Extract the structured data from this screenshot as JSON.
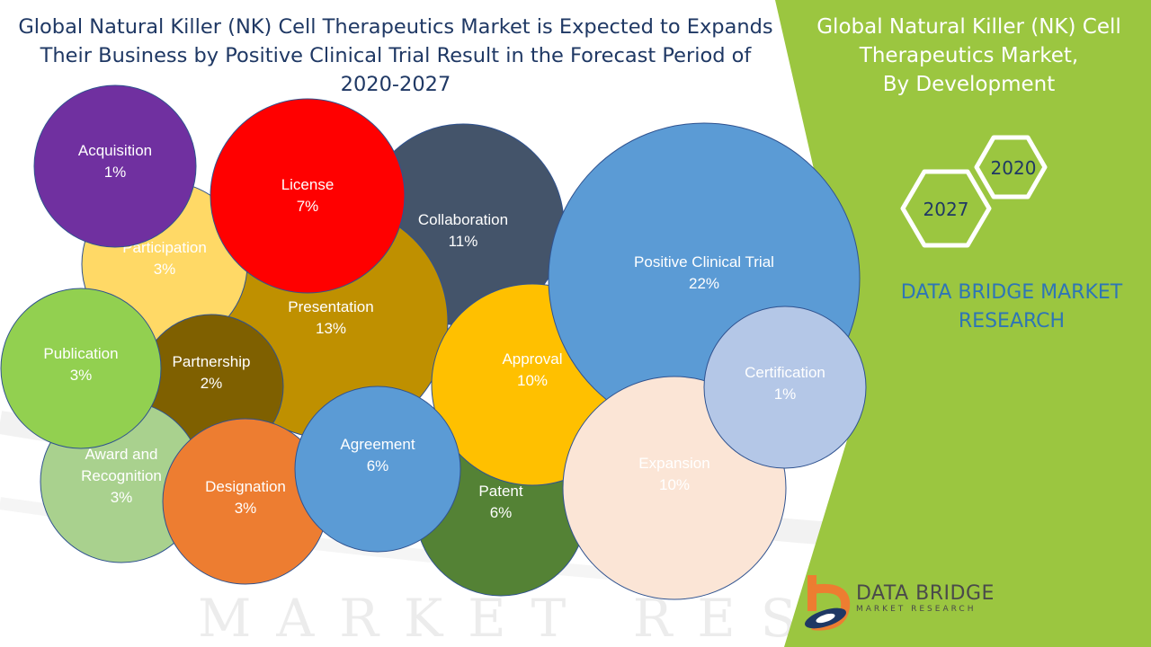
{
  "title": "Global Natural Killer (NK) Cell Therapeutics Market is Expected to Expands Their Business by Positive Clinical Trial Result in the Forecast Period of 2020-2027",
  "side_panel": {
    "title_lines": [
      "Global Natural Killer (NK) Cell",
      "Therapeutics Market,",
      "By Development"
    ],
    "years": [
      "2020",
      "2027"
    ],
    "brand_lines": [
      "DATA BRIDGE MARKET",
      "RESEARCH"
    ]
  },
  "logo": {
    "name": "DATA BRIDGE",
    "tagline": "MARKET RESEARCH"
  },
  "watermark": "MARKET RESEARCH",
  "colors": {
    "panel_green": "#9bc640",
    "title_blue": "#1f3864",
    "brand_blue": "#2e75b6"
  },
  "chart_data": {
    "type": "bubble",
    "title": "Global Natural Killer (NK) Cell Therapeutics Market, By Development",
    "unit": "%",
    "items": [
      {
        "label": "Collaboration",
        "value": 11,
        "display": "11%",
        "color": "#44546a",
        "text_color": "#ffffff"
      },
      {
        "label": "Presentation",
        "value": 13,
        "display": "13%",
        "color": "#bf9000",
        "text_color": "#ffffff"
      },
      {
        "label": "Participation",
        "value": 3,
        "display": "3%",
        "color": "#ffd966",
        "text_color": "#ffffff"
      },
      {
        "label": "Acquisition",
        "value": 1,
        "display": "1%",
        "color": "#7030a0",
        "text_color": "#ffffff"
      },
      {
        "label": "License",
        "value": 7,
        "display": "7%",
        "color": "#ff0000",
        "text_color": "#ffffff"
      },
      {
        "label": "Partnership",
        "value": 2,
        "display": "2%",
        "color": "#7f6000",
        "text_color": "#ffffff"
      },
      {
        "label": "Award and Recognition",
        "value": 3,
        "display": "3%",
        "color": "#a9d18e",
        "text_color": "#ffffff"
      },
      {
        "label": "Publication",
        "value": 3,
        "display": "3%",
        "color": "#92d050",
        "text_color": "#ffffff"
      },
      {
        "label": "Patent",
        "value": 6,
        "display": "6%",
        "color": "#548235",
        "text_color": "#ffffff"
      },
      {
        "label": "Approval",
        "value": 10,
        "display": "10%",
        "color": "#ffc000",
        "text_color": "#ffffff"
      },
      {
        "label": "Designation",
        "value": 3,
        "display": "3%",
        "color": "#ed7d31",
        "text_color": "#ffffff"
      },
      {
        "label": "Agreement",
        "value": 6,
        "display": "6%",
        "color": "#5b9bd5",
        "text_color": "#ffffff"
      },
      {
        "label": "Positive Clinical Trial",
        "value": 22,
        "display": "22%",
        "color": "#5b9bd5",
        "text_color": "#ffffff"
      },
      {
        "label": "Expansion",
        "value": 10,
        "display": "10%",
        "color": "#fbe5d6",
        "text_color": "#ffffff"
      },
      {
        "label": "Certification",
        "value": 1,
        "display": "1%",
        "color": "#b4c7e7",
        "text_color": "#ffffff"
      }
    ]
  }
}
